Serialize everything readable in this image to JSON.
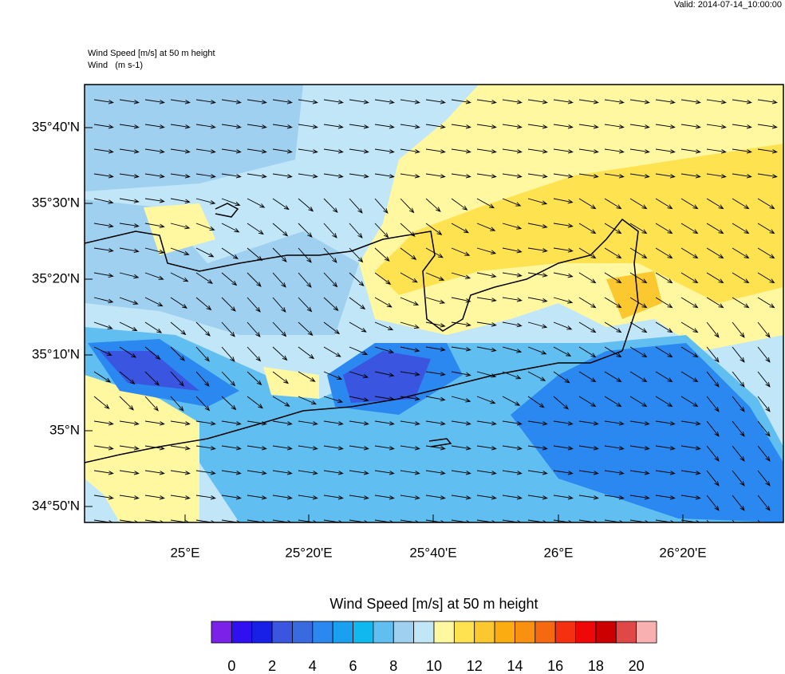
{
  "header": {
    "valid": "Valid: 2014-07-14_10:00:00",
    "field": "Wind Speed [m/s] at 50 m height",
    "vector": "Wind   (m s-1)"
  },
  "map": {
    "lat_labels": [
      "35°40'N",
      "35°30'N",
      "35°20'N",
      "35°10'N",
      "35°N",
      "34°50'N"
    ],
    "lon_labels": [
      "25°E",
      "25°20'E",
      "25°40'E",
      "26°E",
      "26°20'E"
    ]
  },
  "colorbar": {
    "title": "Wind Speed [m/s] at 50 m height",
    "colors": [
      "#7a22e8",
      "#3010f0",
      "#1820e8",
      "#3a55e0",
      "#3a6ae0",
      "#2a88f0",
      "#1aa0f0",
      "#10b8f0",
      "#60bff0",
      "#a0d0f0",
      "#c0e6f8",
      "#fff8a0",
      "#fee250",
      "#fcc830",
      "#fbac10",
      "#f99010",
      "#f56a10",
      "#f43010",
      "#ef0808",
      "#cc0000",
      "#e04848",
      "#f8b0b0"
    ],
    "ticks": [
      0,
      2,
      4,
      6,
      8,
      10,
      12,
      14,
      16,
      18,
      20
    ]
  }
}
